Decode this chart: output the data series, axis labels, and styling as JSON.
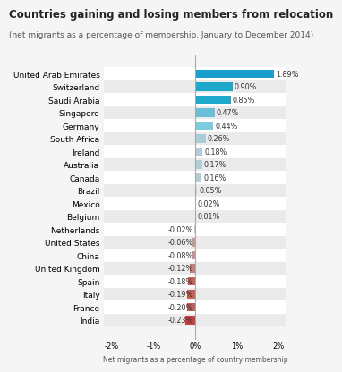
{
  "title": "Countries gaining and losing members from relocation",
  "subtitle": "(net migrants as a percentage of membership, January to December 2014)",
  "xlabel": "Net migrants as a percentage of country membership",
  "countries": [
    "United Arab Emirates",
    "Switzerland",
    "Saudi Arabia",
    "Singapore",
    "Germany",
    "South Africa",
    "Ireland",
    "Australia",
    "Canada",
    "Brazil",
    "Mexico",
    "Belgium",
    "Netherlands",
    "United States",
    "China",
    "United Kingdom",
    "Spain",
    "Italy",
    "France",
    "India"
  ],
  "values": [
    1.89,
    0.9,
    0.85,
    0.47,
    0.44,
    0.26,
    0.18,
    0.17,
    0.16,
    0.05,
    0.02,
    0.01,
    -0.02,
    -0.06,
    -0.08,
    -0.12,
    -0.18,
    -0.19,
    -0.2,
    -0.23
  ],
  "labels": [
    "1.89%",
    "0.90%",
    "0.85%",
    "0.47%",
    "0.44%",
    "0.26%",
    "0.18%",
    "0.17%",
    "0.16%",
    "0.05%",
    "0.02%",
    "0.01%",
    "-0.02%",
    "-0.06%",
    "-0.08%",
    "-0.12%",
    "-0.18%",
    "-0.19%",
    "-0.20%",
    "-0.23%"
  ],
  "bar_colors": [
    "#1a9fcc",
    "#1da8cc",
    "#1da8cc",
    "#6bbfd8",
    "#7ecade",
    "#a9cdd9",
    "#b0cdd6",
    "#b2cdd5",
    "#b4cdd4",
    "#d0d8da",
    "#d8dfe0",
    "#dadfe0",
    "#d4bab8",
    "#c49a96",
    "#c89490",
    "#c47e78",
    "#c8605a",
    "#c86055",
    "#c85a54",
    "#c84040"
  ],
  "bg_color": "#f5f5f5",
  "row_colors": [
    "#ffffff",
    "#ebebeb"
  ],
  "xlim": [
    -2.2,
    2.2
  ],
  "xticks": [
    -2,
    -1,
    0,
    1,
    2
  ],
  "xtick_labels": [
    "-2%",
    "-1%",
    "0%",
    "1%",
    "2%"
  ],
  "title_fontsize": 8.5,
  "subtitle_fontsize": 6.5,
  "label_fontsize": 5.8,
  "country_fontsize": 6.5,
  "xlabel_fontsize": 5.5
}
